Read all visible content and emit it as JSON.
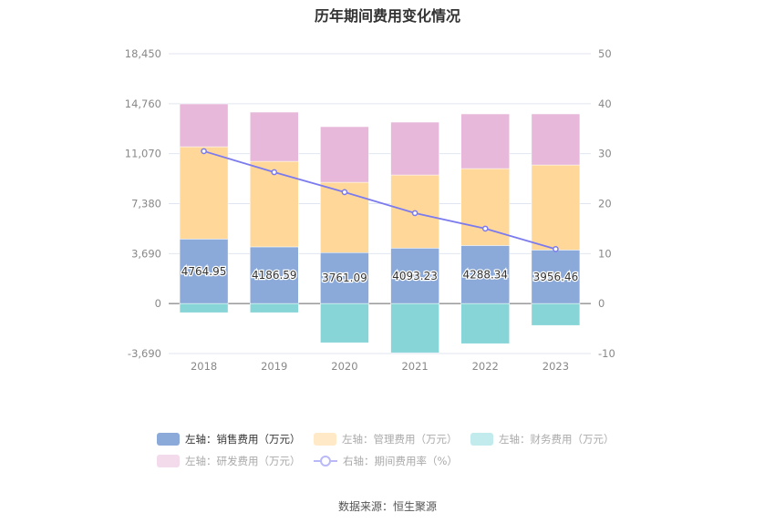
{
  "chart_data": {
    "type": "bar",
    "title": "历年期间费用变化情况",
    "categories": [
      "2018",
      "2019",
      "2020",
      "2021",
      "2022",
      "2023"
    ],
    "left_axis": {
      "ticks": [
        "18,450",
        "14,760",
        "11,070",
        "7,380",
        "3,690",
        "0",
        "-3,690"
      ],
      "range": [
        -3690,
        18450
      ]
    },
    "right_axis": {
      "ticks": [
        "50",
        "40",
        "30",
        "20",
        "10",
        "0",
        "-10"
      ],
      "range": [
        -10,
        50
      ]
    },
    "grid": true,
    "legend_position": "bottom",
    "series": [
      {
        "name": "左轴：销售费用（万元）",
        "kind": "bar",
        "axis": "left",
        "color": "#8BAAD9",
        "values": [
          4764.95,
          4186.59,
          3761.09,
          4093.23,
          4288.34,
          3956.46
        ],
        "labels": [
          "4764.95",
          "4186.59",
          "3761.09",
          "4093.23",
          "4288.34",
          "3956.46"
        ]
      },
      {
        "name": "左轴：管理费用（万元）",
        "kind": "bar",
        "axis": "left",
        "color": "#FFD799",
        "values": [
          6817,
          6318,
          5195,
          5402,
          5678,
          6280
        ]
      },
      {
        "name": "左轴：财务费用（万元）",
        "kind": "bar",
        "axis": "left",
        "color": "#88D5D8",
        "values": [
          -673,
          -673,
          -2896,
          -3636,
          -2963,
          -1616
        ]
      },
      {
        "name": "左轴：研发费用（万元）",
        "kind": "bar",
        "axis": "left",
        "color": "#E7B8D9",
        "values": [
          3165,
          3636,
          4108,
          3905,
          4041,
          3771
        ]
      },
      {
        "name": "右轴：期间费用率（%）",
        "kind": "line",
        "axis": "right",
        "color": "#7B7BEF",
        "values": [
          30.5,
          26.3,
          22.3,
          18.1,
          15.0,
          10.9
        ]
      }
    ],
    "legend_colors_inactive": [
      "#8BAAD9",
      "#FFE9C7",
      "#C2EBED",
      "#F3DBEC",
      "#B9B9F7"
    ]
  },
  "source": "数据来源：恒生聚源"
}
